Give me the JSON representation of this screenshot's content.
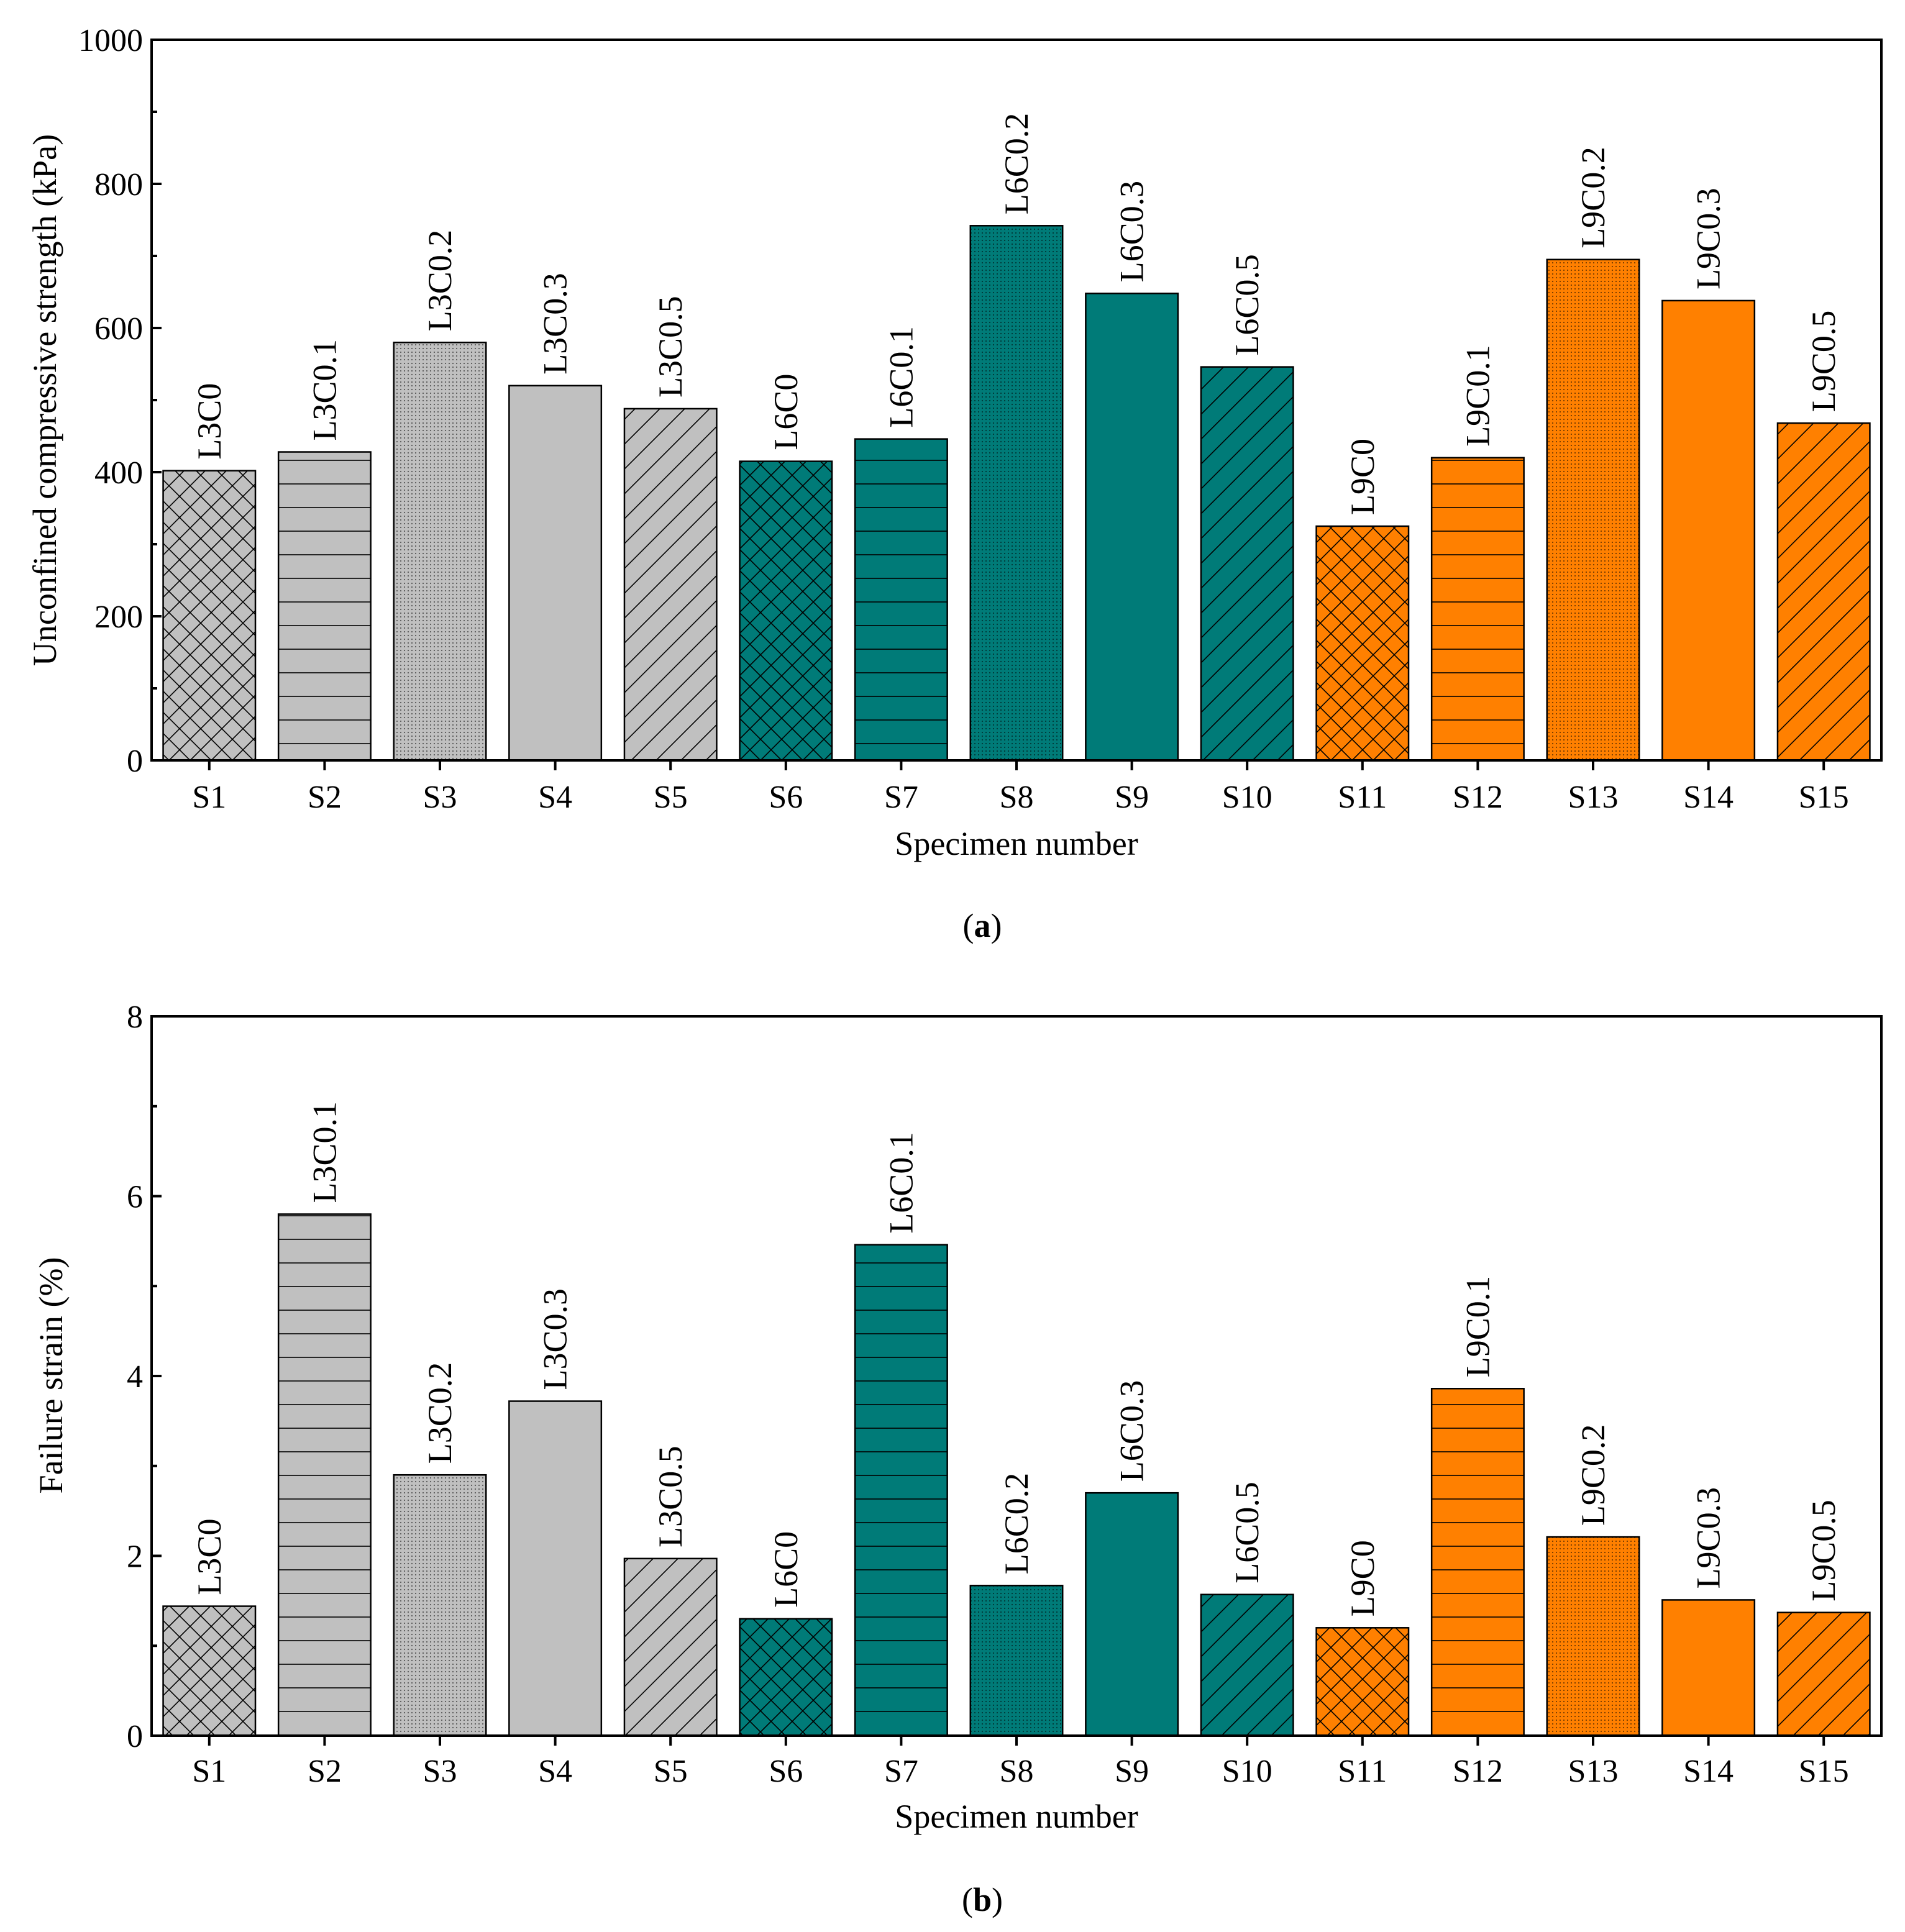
{
  "colors": {
    "L3": "#c0c0c0",
    "L6": "#007b78",
    "L9": "#ff8000",
    "axis": "#000000"
  },
  "chart_data": [
    {
      "type": "bar",
      "panel_label": "a",
      "title": "",
      "xlabel": "Specimen number",
      "ylabel": "Unconfined compressive strength (kPa)",
      "ylim": [
        0,
        1000
      ],
      "yticks": [
        0,
        200,
        400,
        600,
        800,
        1000
      ],
      "categories": [
        "S1",
        "S2",
        "S3",
        "S4",
        "S5",
        "S6",
        "S7",
        "S8",
        "S9",
        "S10",
        "S11",
        "S12",
        "S13",
        "S14",
        "S15"
      ],
      "bar_labels": [
        "L3C0",
        "L3C0.1",
        "L3C0.2",
        "L3C0.3",
        "L3C0.5",
        "L6C0",
        "L6C0.1",
        "L6C0.2",
        "L6C0.3",
        "L6C0.5",
        "L9C0",
        "L9C0.1",
        "L9C0.2",
        "L9C0.3",
        "L9C0.5"
      ],
      "values": [
        402,
        428,
        580,
        520,
        488,
        415,
        446,
        742,
        648,
        546,
        325,
        420,
        695,
        638,
        468
      ],
      "groups": [
        "L3",
        "L3",
        "L3",
        "L3",
        "L3",
        "L6",
        "L6",
        "L6",
        "L6",
        "L6",
        "L9",
        "L9",
        "L9",
        "L9",
        "L9"
      ],
      "patterns": [
        "cross",
        "horizontal",
        "dots",
        "none",
        "diagonal",
        "cross",
        "horizontal",
        "dots",
        "none",
        "diagonal",
        "cross",
        "horizontal",
        "dots",
        "none",
        "diagonal"
      ]
    },
    {
      "type": "bar",
      "panel_label": "b",
      "title": "",
      "xlabel": "Specimen number",
      "ylabel": "Failure strain (%)",
      "ylim": [
        0,
        8
      ],
      "yticks": [
        0,
        2,
        4,
        6,
        8
      ],
      "categories": [
        "S1",
        "S2",
        "S3",
        "S4",
        "S5",
        "S6",
        "S7",
        "S8",
        "S9",
        "S10",
        "S11",
        "S12",
        "S13",
        "S14",
        "S15"
      ],
      "bar_labels": [
        "L3C0",
        "L3C0.1",
        "L3C0.2",
        "L3C0.3",
        "L3C0.5",
        "L6C0",
        "L6C0.1",
        "L6C0.2",
        "L6C0.3",
        "L6C0.5",
        "L9C0",
        "L9C0.1",
        "L9C0.2",
        "L9C0.3",
        "L9C0.5"
      ],
      "values": [
        1.44,
        5.8,
        2.9,
        3.72,
        1.97,
        1.3,
        5.46,
        1.67,
        2.7,
        1.57,
        1.2,
        3.86,
        2.21,
        1.51,
        1.37
      ],
      "groups": [
        "L3",
        "L3",
        "L3",
        "L3",
        "L3",
        "L6",
        "L6",
        "L6",
        "L6",
        "L6",
        "L9",
        "L9",
        "L9",
        "L9",
        "L9"
      ],
      "patterns": [
        "cross",
        "horizontal",
        "dots",
        "none",
        "diagonal",
        "cross",
        "horizontal",
        "dots",
        "none",
        "diagonal",
        "cross",
        "horizontal",
        "dots",
        "none",
        "diagonal"
      ]
    }
  ]
}
